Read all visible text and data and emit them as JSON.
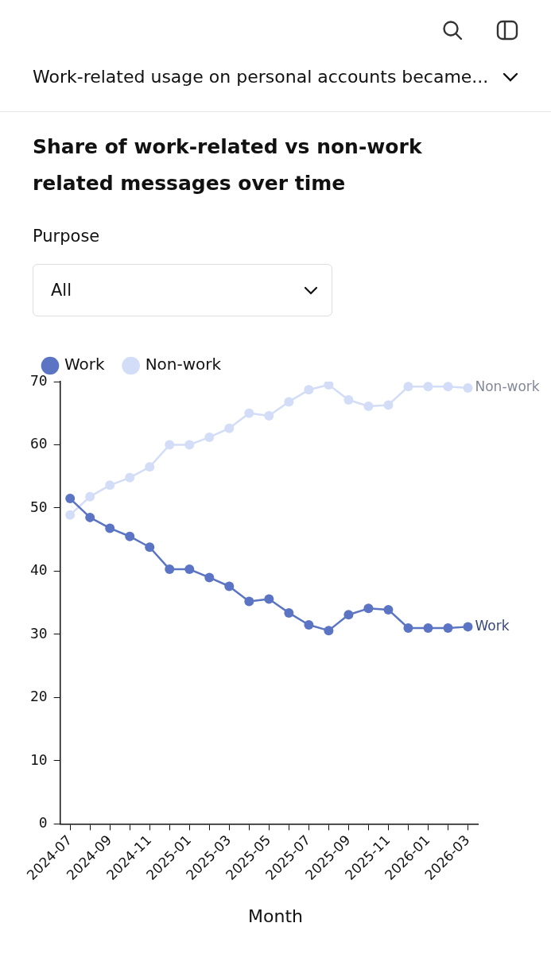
{
  "chart_data": {
    "type": "line",
    "title": "Share of work-related vs non-work related messages over time",
    "annotations": [
      "Work-related usage on personal accounts became...",
      "Purpose",
      "All"
    ],
    "xlabel": "Month",
    "categories": [
      "2024-07",
      null,
      "2024-09",
      null,
      "2024-11",
      null,
      "2025-01",
      null,
      "2025-03",
      null,
      "2025-05",
      null,
      "2025-07",
      null,
      "2025-09",
      null,
      "2025-11",
      null,
      "2026-01",
      null,
      "2026-03"
    ],
    "series": [
      {
        "name": "Work",
        "color": "#5b74c4",
        "values": [
          51.5,
          48.5,
          46.8,
          45.5,
          43.8,
          40.3,
          40.3,
          39.0,
          37.6,
          35.2,
          35.6,
          33.4,
          31.5,
          30.6,
          33.1,
          34.1,
          33.9,
          31.0,
          31.0,
          31.0,
          31.2
        ]
      },
      {
        "name": "Non-work",
        "color": "#d3ddf7",
        "values": [
          48.9,
          51.8,
          53.6,
          54.8,
          56.5,
          60.0,
          60.0,
          61.2,
          62.6,
          65.0,
          64.6,
          66.8,
          68.7,
          69.5,
          67.1,
          66.1,
          66.3,
          69.2,
          69.2,
          69.2,
          69.0
        ]
      }
    ],
    "ylim": [
      0,
      70
    ],
    "yticks": [
      0,
      10,
      20,
      30,
      40,
      50,
      60,
      70
    ],
    "grid": false,
    "legend": "top left",
    "marker": "circle",
    "line_style": "solid"
  }
}
